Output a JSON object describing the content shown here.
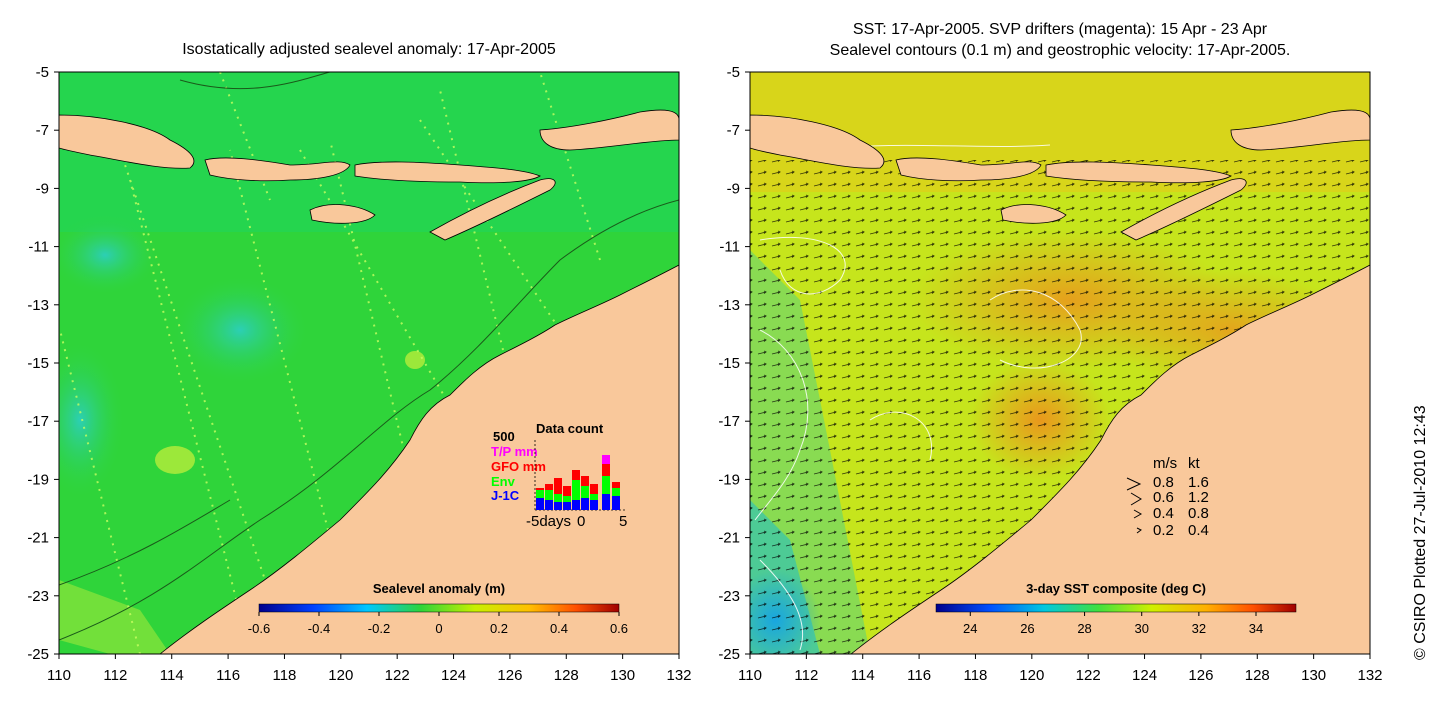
{
  "left_panel": {
    "title": "Isostatically adjusted sealevel anomaly: 17-Apr-2005",
    "x_ticks": [
      "110",
      "112",
      "114",
      "116",
      "118",
      "120",
      "122",
      "124",
      "126",
      "128",
      "130",
      "132"
    ],
    "y_ticks": [
      "-5",
      "-7",
      "-9",
      "-11",
      "-13",
      "-15",
      "-17",
      "-19",
      "-21",
      "-23",
      "-25"
    ],
    "colorbar": {
      "label": "Sealevel anomaly (m)",
      "ticks": [
        "-0.6",
        "-0.4",
        "-0.2",
        "0",
        "0.2",
        "0.4",
        "0.6"
      ],
      "range": [
        -0.6,
        0.6
      ]
    },
    "data_count": {
      "title": "Data count",
      "max_label": "500",
      "series": [
        {
          "name": "T/P mm",
          "color": "#ff00ff"
        },
        {
          "name": "GFO mm",
          "color": "#ff0000"
        },
        {
          "name": "Env",
          "color": "#00ff00"
        },
        {
          "name": "J-1C",
          "color": "#0000ff"
        }
      ],
      "x_label_start": "-5days",
      "x_label_mid": "0",
      "x_label_end": "5"
    }
  },
  "right_panel": {
    "title_line1": "SST: 17-Apr-2005. SVP drifters (magenta): 15 Apr - 23 Apr",
    "title_line2": "Sealevel contours (0.1 m) and geostrophic velocity: 17-Apr-2005.",
    "x_ticks": [
      "110",
      "112",
      "114",
      "116",
      "118",
      "120",
      "122",
      "124",
      "126",
      "128",
      "130",
      "132"
    ],
    "y_ticks": [
      "-5",
      "-7",
      "-9",
      "-11",
      "-13",
      "-15",
      "-17",
      "-19",
      "-21",
      "-23",
      "-25"
    ],
    "colorbar": {
      "label": "3-day SST composite (deg C)",
      "ticks": [
        "24",
        "26",
        "28",
        "30",
        "32",
        "34"
      ],
      "range": [
        22.8,
        35.4
      ]
    },
    "velocity_legend": {
      "header_ms": "m/s",
      "header_kt": "kt",
      "rows": [
        {
          "ms": "0.8",
          "kt": "1.6"
        },
        {
          "ms": "0.6",
          "kt": "1.2"
        },
        {
          "ms": "0.4",
          "kt": "0.8"
        },
        {
          "ms": "0.2",
          "kt": "0.4"
        }
      ]
    }
  },
  "map": {
    "lon_range": [
      110,
      132
    ],
    "lat_range": [
      -25,
      -5
    ]
  },
  "copyright": "© CSIRO Plotted 27-Jul-2010 12:43",
  "colors": {
    "land": "#f9c89b",
    "ocean_sla": "#2fd43a",
    "ocean_sst": "#c6e51c",
    "sst_warm": "#f2a51f",
    "sst_cool": "#3fc7a6"
  }
}
